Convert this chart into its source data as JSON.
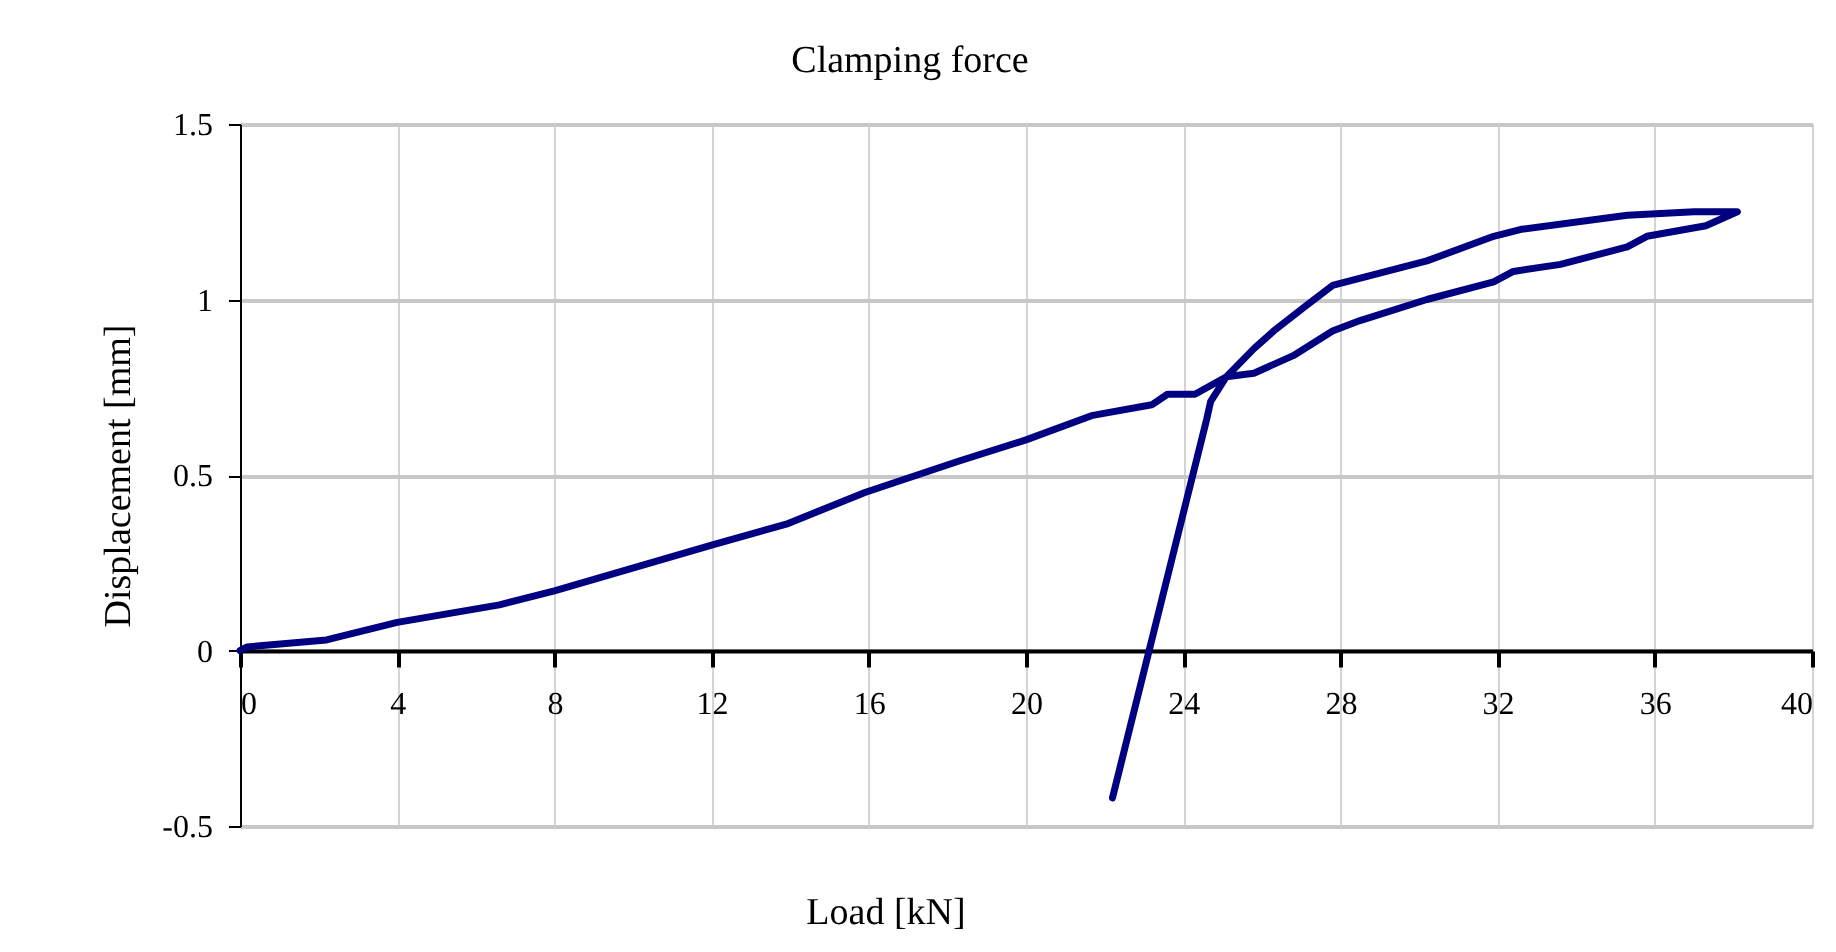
{
  "chart_data": {
    "type": "line",
    "title": "Clamping force",
    "xlabel": "Load [kN]",
    "ylabel": "Displacement  [mm]",
    "x": [
      0,
      0.17,
      2.2,
      4.0,
      6.6,
      8.0,
      12.0,
      13.9,
      15.9,
      18.3,
      20.0,
      21.7,
      23.2,
      23.6,
      24.3,
      25.1,
      25.8,
      26.8,
      27.8,
      28.5,
      30.2,
      31.9,
      32.4,
      33.6,
      35.3,
      35.8,
      37.3,
      38.1,
      37.0,
      35.3,
      32.6,
      31.9,
      30.2,
      27.8,
      27.1,
      26.3,
      25.8,
      25.1,
      24.7,
      24.6,
      22.2
    ],
    "series": [
      {
        "color": "#000080",
        "values": [
          0,
          0.01,
          0.03,
          0.08,
          0.13,
          0.17,
          0.3,
          0.36,
          0.45,
          0.54,
          0.6,
          0.67,
          0.7,
          0.73,
          0.73,
          0.78,
          0.79,
          0.84,
          0.91,
          0.94,
          1.0,
          1.05,
          1.08,
          1.1,
          1.15,
          1.18,
          1.21,
          1.25,
          1.25,
          1.24,
          1.2,
          1.18,
          1.11,
          1.04,
          0.98,
          0.91,
          0.86,
          0.78,
          0.71,
          0.66,
          -0.42
        ]
      }
    ],
    "xlim": [
      0,
      40
    ],
    "xticks": [
      0,
      4,
      8,
      12,
      16,
      20,
      24,
      28,
      32,
      36,
      40
    ],
    "ylim": [
      -0.5,
      1.5
    ],
    "yticks": [
      -0.5,
      0,
      0.5,
      1,
      1.5
    ],
    "grid": true,
    "marker": "none",
    "line_style": "solid"
  }
}
